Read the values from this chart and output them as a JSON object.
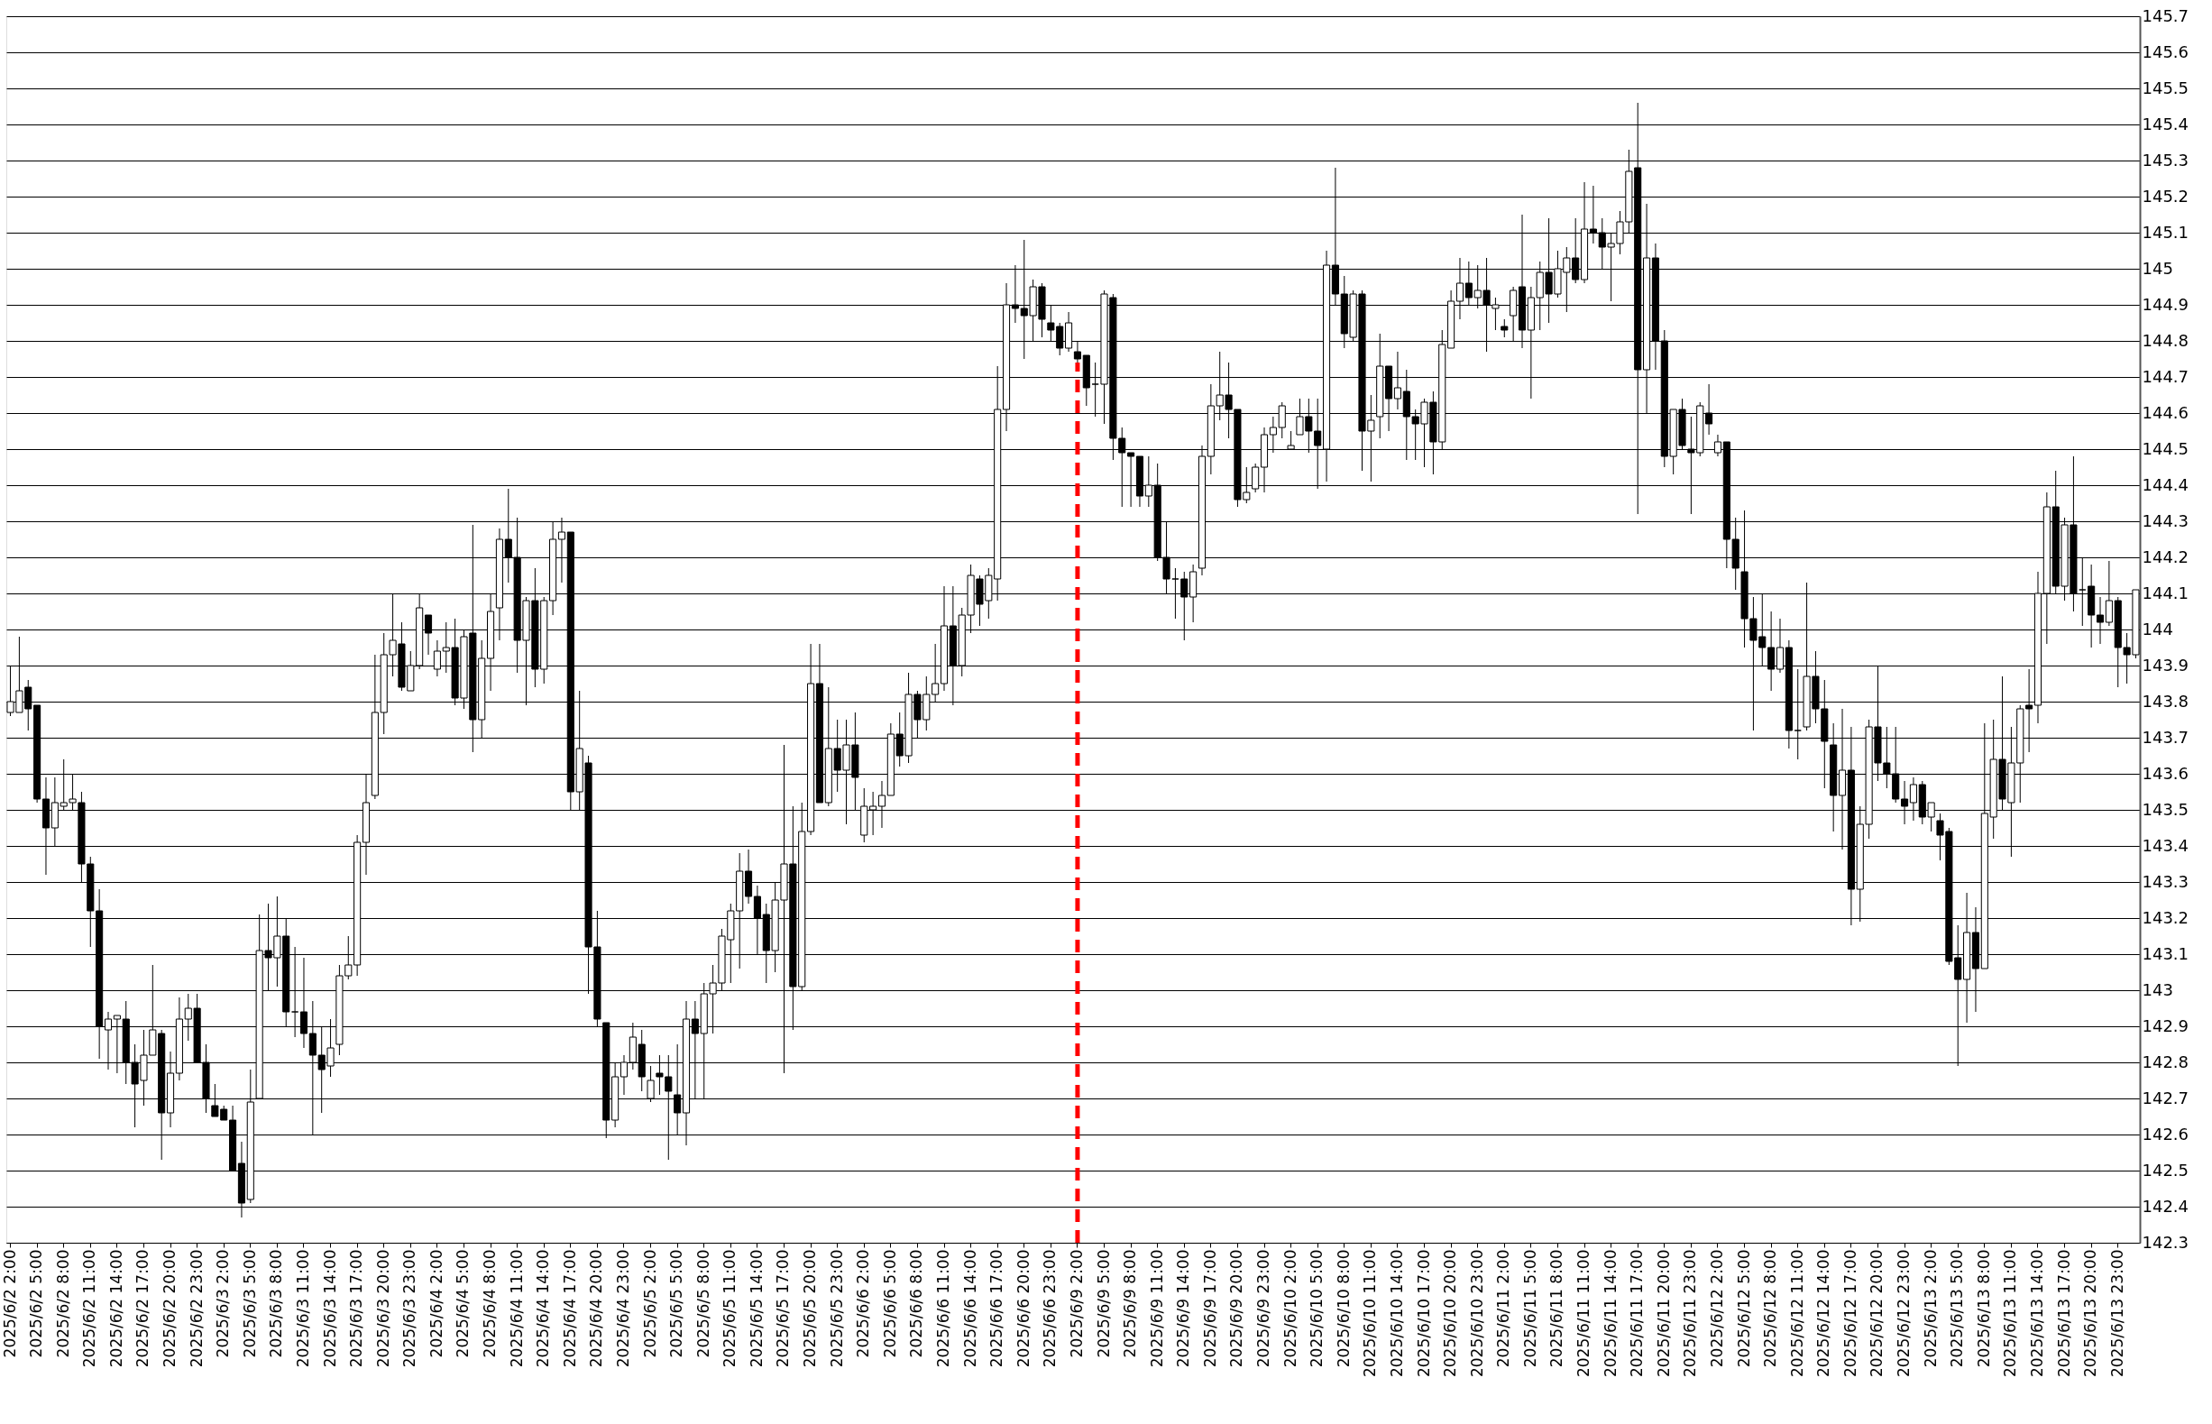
{
  "chart_data": {
    "type": "candlestick",
    "categories": [
      "2025/6/2 2:00",
      null,
      null,
      "2025/6/2 5:00",
      null,
      null,
      "2025/6/2 8:00",
      null,
      null,
      "2025/6/2 11:00",
      null,
      null,
      "2025/6/2 14:00",
      null,
      null,
      "2025/6/2 17:00",
      null,
      null,
      "2025/6/2 20:00",
      null,
      null,
      "2025/6/2 23:00",
      null,
      null,
      "2025/6/3 2:00",
      null,
      null,
      "2025/6/3 5:00",
      null,
      null,
      "2025/6/3 8:00",
      null,
      null,
      "2025/6/3 11:00",
      null,
      null,
      "2025/6/3 14:00",
      null,
      null,
      "2025/6/3 17:00",
      null,
      null,
      "2025/6/3 20:00",
      null,
      null,
      "2025/6/3 23:00",
      null,
      null,
      "2025/6/4 2:00",
      null,
      null,
      "2025/6/4 5:00",
      null,
      null,
      "2025/6/4 8:00",
      null,
      null,
      "2025/6/4 11:00",
      null,
      null,
      "2025/6/4 14:00",
      null,
      null,
      "2025/6/4 17:00",
      null,
      null,
      "2025/6/4 20:00",
      null,
      null,
      "2025/6/4 23:00",
      null,
      null,
      "2025/6/5 2:00",
      null,
      null,
      "2025/6/5 5:00",
      null,
      null,
      "2025/6/5 8:00",
      null,
      null,
      "2025/6/5 11:00",
      null,
      null,
      "2025/6/5 14:00",
      null,
      null,
      "2025/6/5 17:00",
      null,
      null,
      "2025/6/5 20:00",
      null,
      null,
      "2025/6/5 23:00",
      null,
      null,
      "2025/6/6 2:00",
      null,
      null,
      "2025/6/6 5:00",
      null,
      null,
      "2025/6/6 8:00",
      null,
      null,
      "2025/6/6 11:00",
      null,
      null,
      "2025/6/6 14:00",
      null,
      null,
      "2025/6/6 17:00",
      null,
      null,
      "2025/6/6 20:00",
      null,
      null,
      "2025/6/6 23:00",
      null,
      null,
      "2025/6/9 2:00",
      null,
      null,
      "2025/6/9 5:00",
      null,
      null,
      "2025/6/9 8:00",
      null,
      null,
      "2025/6/9 11:00",
      null,
      null,
      "2025/6/9 14:00",
      null,
      null,
      "2025/6/9 17:00",
      null,
      null,
      "2025/6/9 20:00",
      null,
      null,
      "2025/6/9 23:00",
      null,
      null,
      "2025/6/10 2:00",
      null,
      null,
      "2025/6/10 5:00",
      null,
      null,
      "2025/6/10 8:00",
      null,
      null,
      "2025/6/10 11:00",
      null,
      null,
      "2025/6/10 14:00",
      null,
      null,
      "2025/6/10 17:00",
      null,
      null,
      "2025/6/10 20:00",
      null,
      null,
      "2025/6/10 23:00",
      null,
      null,
      "2025/6/11 2:00",
      null,
      null,
      "2025/6/11 5:00",
      null,
      null,
      "2025/6/11 8:00",
      null,
      null,
      "2025/6/11 11:00",
      null,
      null,
      "2025/6/11 14:00",
      null,
      null,
      "2025/6/11 17:00",
      null,
      null,
      "2025/6/11 20:00",
      null,
      null,
      "2025/6/11 23:00",
      null,
      null,
      "2025/6/12 2:00",
      null,
      null,
      "2025/6/12 5:00",
      null,
      null,
      "2025/6/12 8:00",
      null,
      null,
      "2025/6/12 11:00",
      null,
      null,
      "2025/6/12 14:00",
      null,
      null,
      "2025/6/12 17:00",
      null,
      null,
      "2025/6/12 20:00",
      null,
      null,
      "2025/6/12 23:00",
      null,
      null,
      "2025/6/13 2:00",
      null,
      null,
      "2025/6/13 5:00",
      null,
      null,
      "2025/6/13 8:00",
      null,
      null,
      "2025/6/13 11:00",
      null,
      null,
      "2025/6/13 14:00",
      null,
      null,
      "2025/6/13 17:00",
      null,
      null,
      "2025/6/13 20:00",
      null,
      null,
      "2025/6/13 23:00",
      null,
      null
    ],
    "ohlc": [
      [
        143.77,
        143.9,
        143.76,
        143.8
      ],
      [
        143.77,
        143.98,
        143.77,
        143.83
      ],
      [
        143.84,
        143.86,
        143.72,
        143.78
      ],
      [
        143.79,
        143.79,
        143.52,
        143.53
      ],
      [
        143.53,
        143.59,
        143.32,
        143.45
      ],
      [
        143.45,
        143.59,
        143.4,
        143.52
      ],
      [
        143.51,
        143.64,
        143.5,
        143.52
      ],
      [
        143.52,
        143.6,
        143.5,
        143.53
      ],
      [
        143.52,
        143.55,
        143.3,
        143.35
      ],
      [
        143.35,
        143.37,
        143.12,
        143.22
      ],
      [
        143.22,
        143.28,
        142.81,
        142.9
      ],
      [
        142.89,
        142.94,
        142.78,
        142.92
      ],
      [
        142.92,
        142.93,
        142.77,
        142.93
      ],
      [
        142.92,
        142.97,
        142.74,
        142.8
      ],
      [
        142.8,
        142.85,
        142.62,
        142.74
      ],
      [
        142.75,
        142.89,
        142.68,
        142.82
      ],
      [
        142.82,
        143.07,
        142.82,
        142.89
      ],
      [
        142.88,
        142.89,
        142.53,
        142.66
      ],
      [
        142.66,
        142.83,
        142.62,
        142.77
      ],
      [
        142.77,
        142.98,
        142.75,
        142.92
      ],
      [
        142.92,
        142.99,
        142.86,
        142.95
      ],
      [
        142.95,
        142.99,
        142.8,
        142.8
      ],
      [
        142.8,
        142.85,
        142.66,
        142.7
      ],
      [
        142.68,
        142.74,
        142.65,
        142.65
      ],
      [
        142.67,
        142.68,
        142.64,
        142.64
      ],
      [
        142.64,
        142.68,
        142.5,
        142.5
      ],
      [
        142.52,
        142.58,
        142.37,
        142.41
      ],
      [
        142.42,
        142.78,
        142.41,
        142.69
      ],
      [
        142.7,
        143.21,
        142.7,
        143.11
      ],
      [
        143.11,
        143.24,
        143.0,
        143.09
      ],
      [
        143.09,
        143.26,
        143.01,
        143.15
      ],
      [
        143.15,
        143.2,
        142.9,
        142.94
      ],
      [
        142.94,
        143.12,
        142.87,
        142.94
      ],
      [
        142.94,
        143.09,
        142.84,
        142.88
      ],
      [
        142.88,
        142.97,
        142.6,
        142.82
      ],
      [
        142.82,
        142.9,
        142.66,
        142.78
      ],
      [
        142.79,
        142.92,
        142.76,
        142.84
      ],
      [
        142.85,
        143.07,
        142.82,
        143.04
      ],
      [
        143.04,
        143.15,
        143.03,
        143.07
      ],
      [
        143.07,
        143.43,
        143.04,
        143.41
      ],
      [
        143.41,
        143.6,
        143.32,
        143.52
      ],
      [
        143.54,
        143.93,
        143.53,
        143.77
      ],
      [
        143.77,
        143.99,
        143.71,
        143.93
      ],
      [
        143.93,
        144.1,
        143.87,
        143.97
      ],
      [
        143.96,
        144.02,
        143.83,
        143.84
      ],
      [
        143.83,
        143.94,
        143.83,
        143.9
      ],
      [
        143.9,
        144.1,
        143.89,
        144.06
      ],
      [
        144.04,
        144.04,
        143.93,
        143.99
      ],
      [
        143.89,
        143.97,
        143.87,
        143.94
      ],
      [
        143.94,
        144.02,
        143.88,
        143.95
      ],
      [
        143.95,
        144.03,
        143.79,
        143.81
      ],
      [
        143.81,
        144.0,
        143.78,
        143.98
      ],
      [
        143.99,
        144.29,
        143.66,
        143.75
      ],
      [
        143.75,
        143.97,
        143.7,
        143.92
      ],
      [
        143.92,
        144.1,
        143.83,
        144.05
      ],
      [
        144.06,
        144.28,
        143.97,
        144.25
      ],
      [
        144.25,
        144.39,
        144.13,
        144.2
      ],
      [
        144.2,
        144.31,
        143.88,
        143.97
      ],
      [
        143.97,
        144.09,
        143.79,
        144.08
      ],
      [
        144.08,
        144.17,
        143.84,
        143.89
      ],
      [
        143.89,
        144.09,
        143.85,
        144.08
      ],
      [
        144.08,
        144.3,
        144.04,
        144.25
      ],
      [
        144.25,
        144.31,
        144.13,
        144.27
      ],
      [
        144.27,
        144.27,
        143.5,
        143.55
      ],
      [
        143.55,
        143.83,
        143.5,
        143.67
      ],
      [
        143.63,
        143.65,
        142.99,
        143.12
      ],
      [
        143.12,
        143.22,
        142.9,
        142.92
      ],
      [
        142.91,
        142.91,
        142.59,
        142.64
      ],
      [
        142.64,
        142.8,
        142.62,
        142.76
      ],
      [
        142.76,
        142.82,
        142.71,
        142.8
      ],
      [
        142.8,
        142.91,
        142.78,
        142.87
      ],
      [
        142.85,
        142.89,
        142.72,
        142.76
      ],
      [
        142.7,
        142.79,
        142.69,
        142.75
      ],
      [
        142.77,
        142.82,
        142.71,
        142.76
      ],
      [
        142.76,
        142.82,
        142.53,
        142.72
      ],
      [
        142.71,
        142.85,
        142.6,
        142.66
      ],
      [
        142.66,
        142.97,
        142.57,
        142.92
      ],
      [
        142.92,
        142.97,
        142.7,
        142.88
      ],
      [
        142.88,
        143.02,
        142.7,
        142.99
      ],
      [
        142.99,
        143.07,
        142.88,
        143.02
      ],
      [
        143.02,
        143.17,
        143.0,
        143.15
      ],
      [
        143.14,
        143.24,
        143.02,
        143.22
      ],
      [
        143.22,
        143.38,
        143.06,
        143.33
      ],
      [
        143.33,
        143.39,
        143.24,
        143.26
      ],
      [
        143.26,
        143.29,
        143.1,
        143.2
      ],
      [
        143.21,
        143.24,
        143.02,
        143.11
      ],
      [
        143.11,
        143.3,
        143.05,
        143.25
      ],
      [
        143.25,
        143.68,
        142.77,
        143.35
      ],
      [
        143.35,
        143.51,
        142.89,
        143.01
      ],
      [
        143.01,
        143.52,
        143.0,
        143.44
      ],
      [
        143.44,
        143.96,
        143.43,
        143.85
      ],
      [
        143.85,
        143.96,
        143.52,
        143.52
      ],
      [
        143.52,
        143.84,
        143.51,
        143.67
      ],
      [
        143.67,
        143.75,
        143.55,
        143.61
      ],
      [
        143.61,
        143.75,
        143.46,
        143.68
      ],
      [
        143.68,
        143.77,
        143.5,
        143.59
      ],
      [
        143.43,
        143.56,
        143.41,
        143.51
      ],
      [
        143.5,
        143.55,
        143.43,
        143.51
      ],
      [
        143.51,
        143.58,
        143.45,
        143.54
      ],
      [
        143.54,
        143.74,
        143.54,
        143.71
      ],
      [
        143.71,
        143.77,
        143.62,
        143.65
      ],
      [
        143.65,
        143.88,
        143.63,
        143.82
      ],
      [
        143.82,
        143.83,
        143.7,
        143.75
      ],
      [
        143.75,
        143.87,
        143.72,
        143.82
      ],
      [
        143.82,
        143.96,
        143.8,
        143.85
      ],
      [
        143.85,
        144.12,
        143.83,
        144.01
      ],
      [
        144.01,
        144.12,
        143.79,
        143.9
      ],
      [
        143.9,
        144.06,
        143.87,
        144.04
      ],
      [
        144.04,
        144.18,
        143.99,
        144.15
      ],
      [
        144.14,
        144.15,
        144.01,
        144.07
      ],
      [
        144.08,
        144.17,
        144.03,
        144.15
      ],
      [
        144.14,
        144.73,
        144.08,
        144.61
      ],
      [
        144.61,
        144.96,
        144.55,
        144.9
      ],
      [
        144.9,
        145.01,
        144.85,
        144.89
      ],
      [
        144.89,
        145.08,
        144.75,
        144.87
      ],
      [
        144.87,
        144.97,
        144.8,
        144.95
      ],
      [
        144.95,
        144.96,
        144.81,
        144.86
      ],
      [
        144.85,
        144.9,
        144.8,
        144.83
      ],
      [
        144.84,
        144.85,
        144.76,
        144.78
      ],
      [
        144.78,
        144.88,
        144.77,
        144.85
      ],
      [
        144.77,
        144.8,
        144.74,
        144.75
      ],
      [
        144.76,
        144.76,
        144.62,
        144.67
      ],
      [
        144.68,
        144.74,
        144.59,
        144.68
      ],
      [
        144.68,
        144.94,
        144.57,
        144.93
      ],
      [
        144.92,
        144.93,
        144.47,
        144.53
      ],
      [
        144.53,
        144.56,
        144.34,
        144.49
      ],
      [
        144.49,
        144.49,
        144.34,
        144.48
      ],
      [
        144.48,
        144.48,
        144.34,
        144.37
      ],
      [
        144.37,
        144.48,
        144.34,
        144.4
      ],
      [
        144.4,
        144.46,
        144.19,
        144.2
      ],
      [
        144.2,
        144.3,
        144.1,
        144.14
      ],
      [
        144.14,
        144.17,
        144.03,
        144.14
      ],
      [
        144.14,
        144.16,
        143.97,
        144.09
      ],
      [
        144.09,
        144.18,
        144.02,
        144.16
      ],
      [
        144.17,
        144.51,
        144.15,
        144.48
      ],
      [
        144.48,
        144.68,
        144.43,
        144.62
      ],
      [
        144.62,
        144.77,
        144.58,
        144.65
      ],
      [
        144.65,
        144.74,
        144.53,
        144.61
      ],
      [
        144.61,
        144.61,
        144.34,
        144.36
      ],
      [
        144.36,
        144.45,
        144.35,
        144.38
      ],
      [
        144.39,
        144.46,
        144.38,
        144.45
      ],
      [
        144.45,
        144.56,
        144.38,
        144.54
      ],
      [
        144.54,
        144.59,
        144.49,
        144.56
      ],
      [
        144.56,
        144.63,
        144.53,
        144.62
      ],
      [
        144.5,
        144.55,
        144.5,
        144.51
      ],
      [
        144.54,
        144.64,
        144.54,
        144.59
      ],
      [
        144.59,
        144.64,
        144.49,
        144.55
      ],
      [
        144.55,
        144.64,
        144.39,
        144.51
      ],
      [
        144.5,
        145.05,
        144.41,
        145.01
      ],
      [
        145.01,
        145.28,
        144.9,
        144.93
      ],
      [
        144.93,
        144.98,
        144.78,
        144.82
      ],
      [
        144.81,
        144.94,
        144.8,
        144.93
      ],
      [
        144.93,
        144.94,
        144.44,
        144.55
      ],
      [
        144.55,
        144.65,
        144.41,
        144.58
      ],
      [
        144.59,
        144.82,
        144.53,
        144.73
      ],
      [
        144.73,
        144.73,
        144.55,
        144.64
      ],
      [
        144.64,
        144.77,
        144.61,
        144.67
      ],
      [
        144.66,
        144.72,
        144.47,
        144.59
      ],
      [
        144.59,
        144.61,
        144.47,
        144.57
      ],
      [
        144.57,
        144.64,
        144.45,
        144.63
      ],
      [
        144.63,
        144.66,
        144.43,
        144.52
      ],
      [
        144.52,
        144.83,
        144.5,
        144.79
      ],
      [
        144.78,
        144.94,
        144.78,
        144.91
      ],
      [
        144.91,
        145.03,
        144.86,
        144.96
      ],
      [
        144.96,
        145.02,
        144.9,
        144.92
      ],
      [
        144.92,
        145.01,
        144.89,
        144.94
      ],
      [
        144.94,
        145.03,
        144.77,
        144.9
      ],
      [
        144.89,
        144.92,
        144.83,
        144.9
      ],
      [
        144.84,
        144.86,
        144.81,
        144.83
      ],
      [
        144.87,
        144.95,
        144.8,
        144.94
      ],
      [
        144.95,
        145.15,
        144.78,
        144.83
      ],
      [
        144.83,
        144.95,
        144.64,
        144.92
      ],
      [
        144.92,
        145.02,
        144.83,
        144.99
      ],
      [
        144.99,
        145.14,
        144.85,
        144.93
      ],
      [
        144.93,
        145.05,
        144.92,
        145.0
      ],
      [
        144.99,
        145.06,
        144.88,
        145.03
      ],
      [
        145.03,
        145.14,
        144.96,
        144.97
      ],
      [
        144.97,
        145.24,
        144.96,
        145.11
      ],
      [
        145.11,
        145.23,
        145.07,
        145.1
      ],
      [
        145.1,
        145.14,
        145.0,
        145.06
      ],
      [
        145.06,
        145.1,
        144.91,
        145.07
      ],
      [
        145.07,
        145.16,
        145.04,
        145.13
      ],
      [
        145.13,
        145.33,
        145.1,
        145.27
      ],
      [
        145.28,
        145.46,
        144.32,
        144.72
      ],
      [
        144.72,
        145.18,
        144.6,
        145.03
      ],
      [
        145.03,
        145.07,
        144.72,
        144.8
      ],
      [
        144.8,
        144.83,
        144.45,
        144.48
      ],
      [
        144.48,
        144.61,
        144.43,
        144.61
      ],
      [
        144.61,
        144.64,
        144.5,
        144.51
      ],
      [
        144.5,
        144.59,
        144.32,
        144.49
      ],
      [
        144.49,
        144.63,
        144.48,
        144.62
      ],
      [
        144.6,
        144.68,
        144.54,
        144.57
      ],
      [
        144.49,
        144.54,
        144.48,
        144.52
      ],
      [
        144.52,
        144.52,
        144.17,
        144.25
      ],
      [
        144.25,
        144.31,
        144.11,
        144.17
      ],
      [
        144.16,
        144.33,
        143.95,
        144.03
      ],
      [
        144.03,
        144.09,
        143.72,
        143.97
      ],
      [
        143.98,
        144.1,
        143.9,
        143.95
      ],
      [
        143.95,
        144.05,
        143.83,
        143.89
      ],
      [
        143.89,
        144.03,
        143.88,
        143.95
      ],
      [
        143.95,
        143.97,
        143.67,
        143.72
      ],
      [
        143.72,
        143.89,
        143.64,
        143.72
      ],
      [
        143.73,
        144.13,
        143.72,
        143.87
      ],
      [
        143.87,
        143.94,
        143.74,
        143.78
      ],
      [
        143.78,
        143.86,
        143.56,
        143.69
      ],
      [
        143.68,
        143.74,
        143.44,
        143.54
      ],
      [
        143.54,
        143.78,
        143.39,
        143.61
      ],
      [
        143.61,
        143.73,
        143.18,
        143.28
      ],
      [
        143.28,
        143.51,
        143.19,
        143.46
      ],
      [
        143.46,
        143.75,
        143.42,
        143.73
      ],
      [
        143.73,
        143.9,
        143.58,
        143.63
      ],
      [
        143.63,
        143.73,
        143.56,
        143.6
      ],
      [
        143.6,
        143.73,
        143.52,
        143.53
      ],
      [
        143.53,
        143.58,
        143.46,
        143.51
      ],
      [
        143.52,
        143.59,
        143.47,
        143.57
      ],
      [
        143.57,
        143.58,
        143.46,
        143.48
      ],
      [
        143.48,
        143.52,
        143.44,
        143.52
      ],
      [
        143.47,
        143.49,
        143.36,
        143.43
      ],
      [
        143.44,
        143.45,
        143.07,
        143.08
      ],
      [
        143.09,
        143.18,
        142.79,
        143.03
      ],
      [
        143.03,
        143.27,
        142.91,
        143.16
      ],
      [
        143.16,
        143.23,
        142.94,
        143.06
      ],
      [
        143.06,
        143.74,
        143.06,
        143.49
      ],
      [
        143.48,
        143.75,
        143.42,
        143.64
      ],
      [
        143.64,
        143.87,
        143.5,
        143.53
      ],
      [
        143.52,
        143.73,
        143.37,
        143.63
      ],
      [
        143.63,
        143.79,
        143.52,
        143.78
      ],
      [
        143.79,
        143.89,
        143.66,
        143.78
      ],
      [
        143.79,
        144.16,
        143.74,
        144.1
      ],
      [
        144.1,
        144.38,
        143.96,
        144.34
      ],
      [
        144.34,
        144.44,
        144.1,
        144.12
      ],
      [
        144.12,
        144.31,
        144.08,
        144.29
      ],
      [
        144.29,
        144.48,
        144.05,
        144.1
      ],
      [
        144.11,
        144.2,
        144.01,
        144.11
      ],
      [
        144.12,
        144.18,
        143.95,
        144.04
      ],
      [
        144.04,
        144.09,
        143.96,
        144.02
      ],
      [
        144.02,
        144.19,
        144.01,
        144.08
      ],
      [
        144.08,
        144.09,
        143.84,
        143.95
      ],
      [
        143.95,
        143.99,
        143.85,
        143.93
      ],
      [
        143.93,
        144.11,
        143.92,
        144.11
      ]
    ],
    "ylim": [
      142.3,
      145.7
    ],
    "yticks": [
      142.3,
      142.4,
      142.5,
      142.6,
      142.7,
      142.8,
      142.9,
      143,
      143.1,
      143.2,
      143.3,
      143.4,
      143.5,
      143.6,
      143.7,
      143.8,
      143.9,
      144,
      144.1,
      144.2,
      144.3,
      144.4,
      144.5,
      144.6,
      144.7,
      144.8,
      144.9,
      145,
      145.1,
      145.2,
      145.3,
      145.4,
      145.5,
      145.6,
      145.7
    ],
    "grid": "y",
    "ref_lines": [
      {
        "axis": "x",
        "value": "2025/6/9 2:00",
        "color": "#ff0000",
        "line_style": "dashed"
      }
    ]
  }
}
